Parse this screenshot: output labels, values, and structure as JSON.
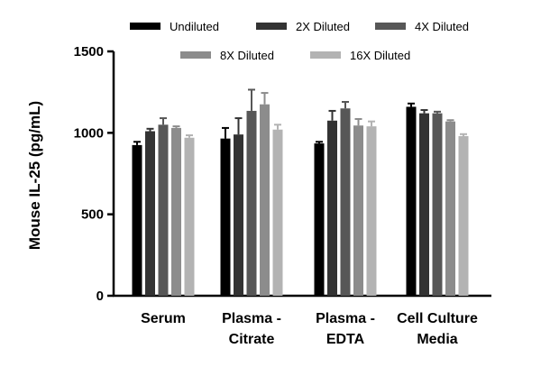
{
  "chart_data": {
    "type": "bar",
    "title": "",
    "xlabel": "",
    "ylabel": "Mouse  IL-25 (pg/mL)",
    "ylim": [
      0,
      1500
    ],
    "yticks": [
      0,
      500,
      1000,
      1500
    ],
    "categories": [
      [
        "Serum"
      ],
      [
        "Plasma -",
        "Citrate"
      ],
      [
        "Plasma -",
        "EDTA"
      ],
      [
        "Cell Culture",
        "Media"
      ]
    ],
    "legend_position": "top",
    "series": [
      {
        "name": "Undiluted",
        "color": "#000000",
        "values": [
          925,
          965,
          935,
          1160
        ],
        "errors": [
          20,
          65,
          10,
          20
        ]
      },
      {
        "name": "2X Diluted",
        "color": "#333333",
        "values": [
          1010,
          990,
          1075,
          1120
        ],
        "errors": [
          15,
          100,
          60,
          20
        ]
      },
      {
        "name": "4X Diluted",
        "color": "#575757",
        "values": [
          1050,
          1135,
          1150,
          1120
        ],
        "errors": [
          40,
          130,
          40,
          10
        ]
      },
      {
        "name": "8X Diluted",
        "color": "#8c8c8c",
        "values": [
          1030,
          1175,
          1045,
          1070
        ],
        "errors": [
          10,
          70,
          40,
          8
        ]
      },
      {
        "name": "16X Diluted",
        "color": "#b3b3b3",
        "values": [
          970,
          1020,
          1040,
          980
        ],
        "errors": [
          15,
          30,
          30,
          12
        ]
      }
    ]
  }
}
